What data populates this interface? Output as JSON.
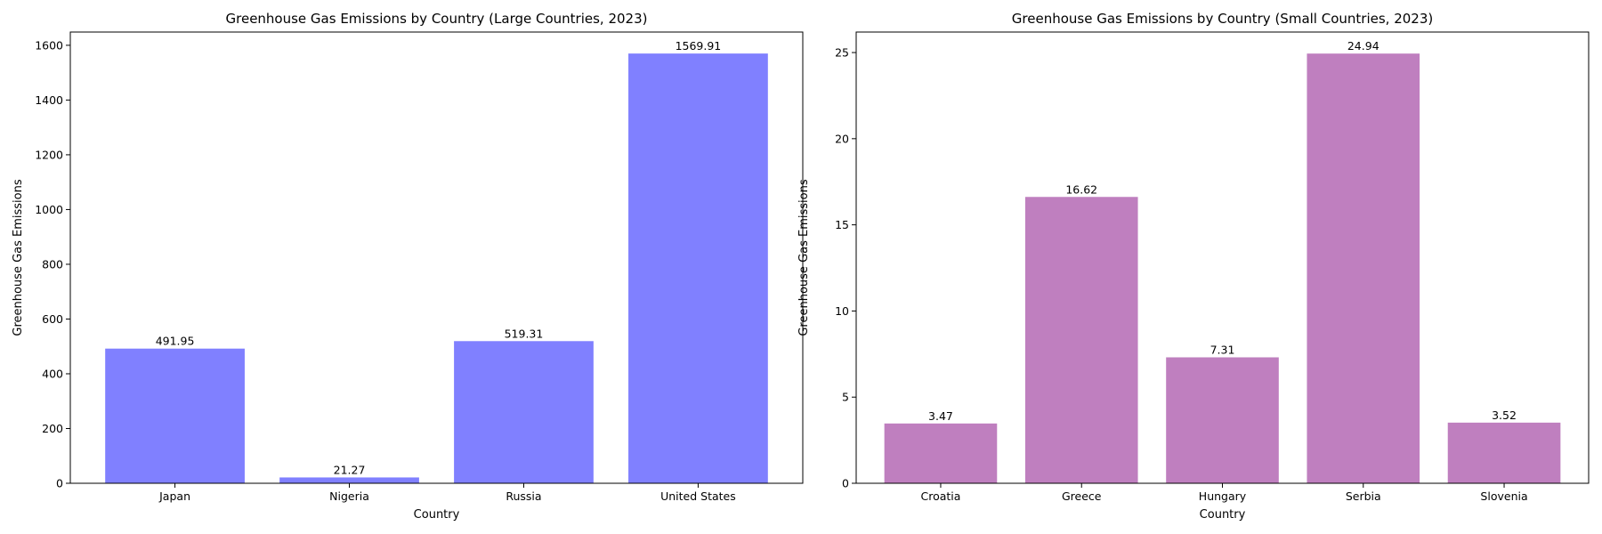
{
  "chart_data": [
    {
      "type": "bar",
      "title": "Greenhouse Gas Emissions by Country (Large Countries, 2023)",
      "xlabel": "Country",
      "ylabel": "Greenhouse Gas Emissions",
      "categories": [
        "Japan",
        "Nigeria",
        "Russia",
        "United States"
      ],
      "values": [
        491.95,
        21.27,
        519.31,
        1569.91
      ],
      "value_labels": [
        "491.95",
        "21.27",
        "519.31",
        "1569.91"
      ],
      "ylim": [
        0,
        1648.4
      ],
      "yticks": [
        0,
        200,
        400,
        600,
        800,
        1000,
        1200,
        1400,
        1600
      ],
      "ytick_labels": [
        "0",
        "200",
        "400",
        "600",
        "800",
        "1000",
        "1200",
        "1400",
        "1600"
      ],
      "bar_color": "#8080ff",
      "grid": false
    },
    {
      "type": "bar",
      "title": "Greenhouse Gas Emissions by Country (Small Countries, 2023)",
      "xlabel": "Country",
      "ylabel": "Greenhouse Gas Emissions",
      "categories": [
        "Croatia",
        "Greece",
        "Hungary",
        "Serbia",
        "Slovenia"
      ],
      "values": [
        3.47,
        16.62,
        7.31,
        24.94,
        3.52
      ],
      "value_labels": [
        "3.47",
        "16.62",
        "7.31",
        "24.94",
        "3.52"
      ],
      "ylim": [
        0,
        26.19
      ],
      "yticks": [
        0,
        5,
        10,
        15,
        20,
        25
      ],
      "ytick_labels": [
        "0",
        "5",
        "10",
        "15",
        "20",
        "25"
      ],
      "bar_color": "#bf7fbf",
      "grid": false
    }
  ]
}
